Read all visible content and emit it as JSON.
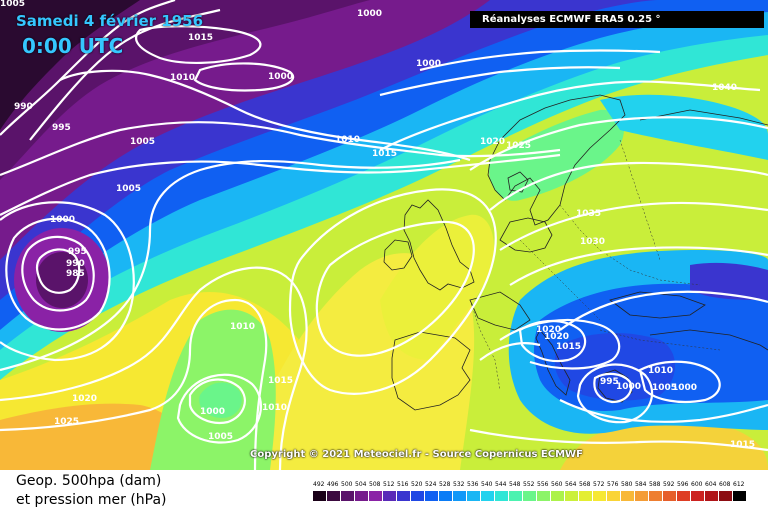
{
  "header": {
    "date": "Samedi 4 février 1956",
    "time": "0:00 UTC",
    "reanalysis": "Réanalyses ECMWF ERA5 0.25 °"
  },
  "copyright": "Copyright © 2021 Meteociel.fr - Source Copernicus ECMWF",
  "footer": {
    "line1": "Geop. 500hpa (dam)",
    "line2": "et pression mer (hPa)"
  },
  "legend": {
    "ticks": [
      "492",
      "496",
      "500",
      "504",
      "508",
      "512",
      "516",
      "520",
      "524",
      "528",
      "532",
      "536",
      "540",
      "544",
      "548",
      "552",
      "556",
      "560",
      "564",
      "568",
      "572",
      "576",
      "580",
      "584",
      "588",
      "592",
      "596",
      "600",
      "604",
      "608",
      "612"
    ],
    "colors": [
      "#1a0018",
      "#3b0a3f",
      "#5a136a",
      "#761b8c",
      "#8a22a6",
      "#5a2ab8",
      "#3a35cf",
      "#2048e4",
      "#1060f2",
      "#0a7cf6",
      "#1098f8",
      "#1ab6f4",
      "#22d2ee",
      "#30e6d6",
      "#4cf2b0",
      "#6af58a",
      "#8cf468",
      "#acf24a",
      "#cbf03a",
      "#e4ee32",
      "#f6e832",
      "#fad436",
      "#f8b838",
      "#f49c36",
      "#ee7e30",
      "#e65e2a",
      "#de3e24",
      "#cc2220",
      "#b01418",
      "#8c0c12",
      "#000000"
    ]
  },
  "pressure_labels": [
    "1005",
    "1000",
    "1015",
    "1010",
    "1000",
    "995",
    "990",
    "1005",
    "1005",
    "1000",
    "995",
    "990",
    "985",
    "1000",
    "1010",
    "1015",
    "1020",
    "1025",
    "1040",
    "1035",
    "1030",
    "1020",
    "1020",
    "1015",
    "1010",
    "995",
    "1000",
    "1005",
    "1000",
    "1010",
    "1015",
    "1010",
    "1000",
    "1005",
    "1020",
    "1025",
    "1015"
  ]
}
